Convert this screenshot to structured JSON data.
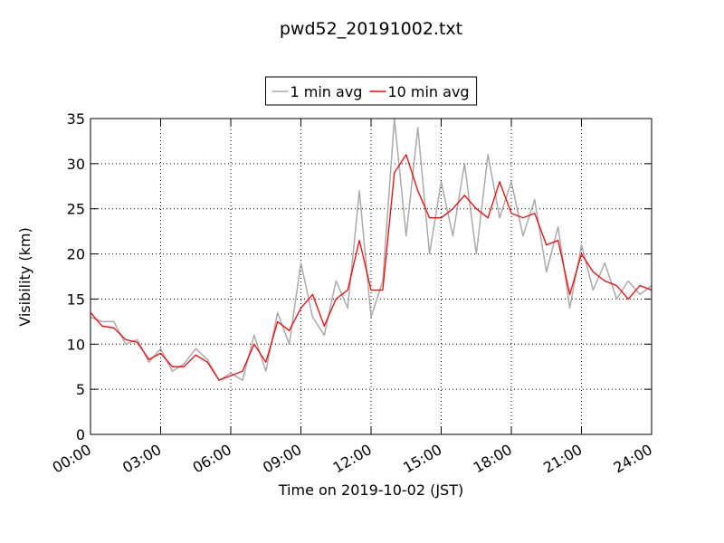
{
  "chart_data": {
    "type": "line",
    "title": "pwd52_20191002.txt",
    "xlabel": "Time on 2019-10-02 (JST)",
    "ylabel": "Visibility (km)",
    "x": [
      0,
      0.5,
      1,
      1.5,
      2,
      2.5,
      3,
      3.5,
      4,
      4.5,
      5,
      5.5,
      6,
      6.5,
      7,
      7.5,
      8,
      8.5,
      9,
      9.5,
      10,
      10.5,
      11,
      11.5,
      12,
      12.5,
      13,
      13.5,
      14,
      14.5,
      15,
      15.5,
      16,
      16.5,
      17,
      17.5,
      18,
      18.5,
      19,
      19.5,
      20,
      20.5,
      21,
      21.5,
      22,
      22.5,
      23,
      23.5,
      24
    ],
    "series": [
      {
        "name": "1 min avg",
        "color": "#aaaaaa",
        "values": [
          13,
          12.5,
          12.5,
          10,
          10.5,
          8,
          9.5,
          7,
          7.8,
          9.5,
          8.3,
          6,
          6.8,
          6,
          11,
          7,
          13.5,
          10,
          19,
          13,
          11,
          17,
          14,
          27,
          13,
          17,
          35,
          22,
          34,
          20,
          28,
          22,
          30,
          20,
          31,
          24,
          28,
          22,
          26,
          18,
          23,
          14,
          21,
          16,
          19,
          15,
          17,
          15.5,
          16.5
        ]
      },
      {
        "name": "10 min avg",
        "color": "#ff0000",
        "values": [
          13.5,
          12,
          11.8,
          10.5,
          10.2,
          8.3,
          9,
          7.5,
          7.5,
          8.8,
          8,
          6,
          6.5,
          7,
          10,
          8,
          12.5,
          11.5,
          14,
          15.5,
          12,
          15,
          16,
          21.5,
          16,
          16,
          29,
          31,
          27,
          24,
          24,
          25,
          26.5,
          25,
          24,
          28,
          24.5,
          24,
          24.5,
          21,
          21.5,
          15.5,
          20,
          18,
          17,
          16.5,
          15,
          16.5,
          16
        ]
      }
    ],
    "xlim": [
      0,
      24
    ],
    "xticks": [
      {
        "value": 0,
        "label": "00:00"
      },
      {
        "value": 3,
        "label": "03:00"
      },
      {
        "value": 6,
        "label": "06:00"
      },
      {
        "value": 9,
        "label": "09:00"
      },
      {
        "value": 12,
        "label": "12:00"
      },
      {
        "value": 15,
        "label": "15:00"
      },
      {
        "value": 18,
        "label": "18:00"
      },
      {
        "value": 21,
        "label": "21:00"
      },
      {
        "value": 24,
        "label": "24:00"
      }
    ],
    "ylim": [
      0,
      35
    ],
    "yticks": [
      0,
      5,
      10,
      15,
      20,
      25,
      30,
      35
    ],
    "grid": true,
    "legend": "top"
  }
}
